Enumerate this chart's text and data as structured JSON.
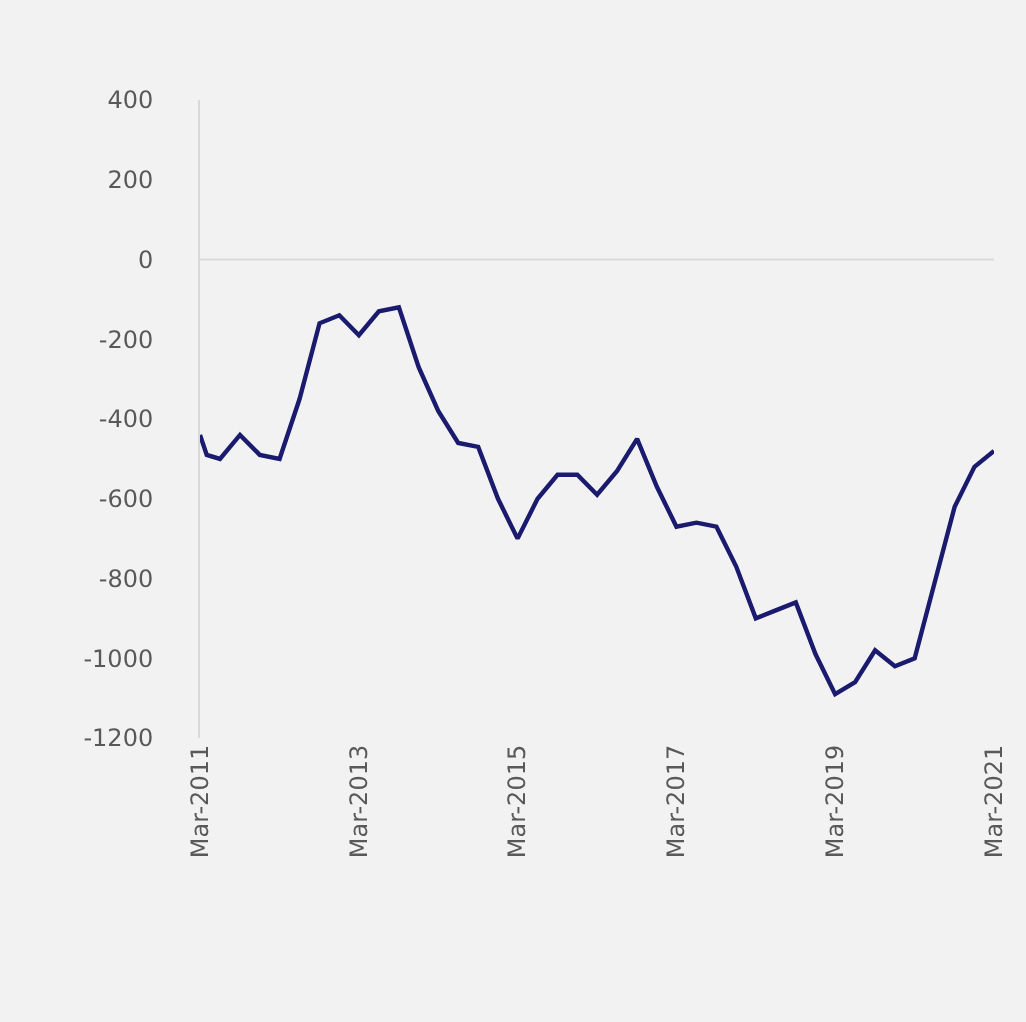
{
  "chart_data": {
    "type": "line",
    "x": [
      "2011-03",
      "2011-04",
      "2011-06",
      "2011-09",
      "2011-12",
      "2012-03",
      "2012-06",
      "2012-09",
      "2012-12",
      "2013-03",
      "2013-06",
      "2013-09",
      "2013-12",
      "2014-03",
      "2014-06",
      "2014-09",
      "2014-12",
      "2015-03",
      "2015-06",
      "2015-09",
      "2015-12",
      "2016-03",
      "2016-06",
      "2016-09",
      "2016-12",
      "2017-03",
      "2017-06",
      "2017-09",
      "2017-12",
      "2018-03",
      "2018-06",
      "2018-09",
      "2018-12",
      "2019-03",
      "2019-06",
      "2019-09",
      "2019-12",
      "2020-03",
      "2020-06",
      "2020-09",
      "2020-12",
      "2021-03"
    ],
    "series": [
      {
        "color": "#1a1a6e",
        "values": [
          -440,
          -490,
          -500,
          -440,
          -490,
          -500,
          -350,
          -160,
          -140,
          -190,
          -130,
          -120,
          -270,
          -380,
          -460,
          -470,
          -600,
          -700,
          -600,
          -540,
          -540,
          -590,
          -530,
          -450,
          -570,
          -670,
          -660,
          -670,
          -770,
          -900,
          -880,
          -860,
          -990,
          -1090,
          -1060,
          -980,
          -1020,
          -1000,
          -810,
          -620,
          -520,
          -480
        ]
      }
    ],
    "xlim": [
      "2011-03",
      "2021-03"
    ],
    "xticks": [
      {
        "value": "2011-03",
        "label": "Mar-2011"
      },
      {
        "value": "2013-03",
        "label": "Mar-2013"
      },
      {
        "value": "2015-03",
        "label": "Mar-2015"
      },
      {
        "value": "2017-03",
        "label": "Mar-2017"
      },
      {
        "value": "2019-03",
        "label": "Mar-2019"
      },
      {
        "value": "2021-03",
        "label": "Mar-2021"
      }
    ],
    "ylim": [
      -1200,
      400
    ],
    "yticks": [
      -1200,
      -1000,
      -800,
      -600,
      -400,
      -200,
      0,
      200,
      400
    ],
    "ref_lines": [
      {
        "axis": "y",
        "value": 0,
        "color": "#d9d9d9"
      }
    ],
    "grid": false,
    "legend": false,
    "marker": "none",
    "line_style": "solid"
  }
}
